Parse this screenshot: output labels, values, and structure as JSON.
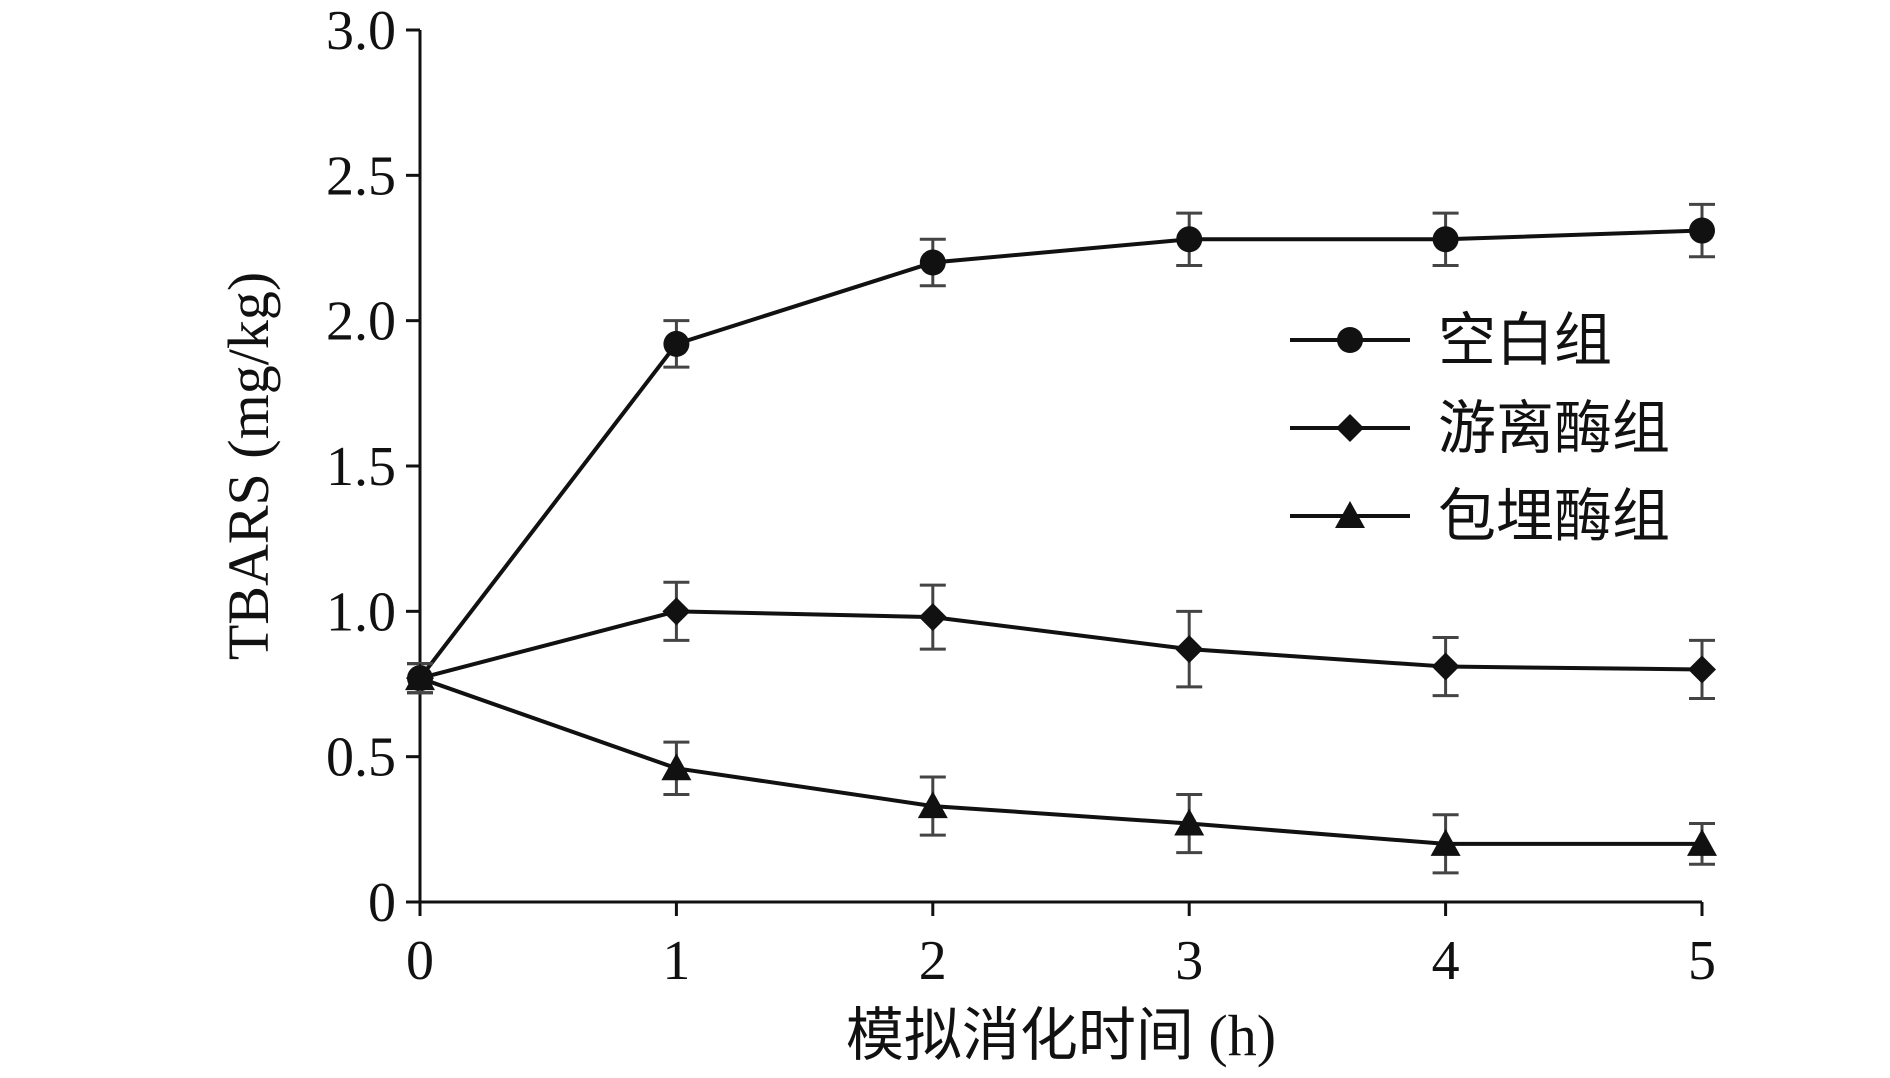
{
  "chart_data": {
    "type": "line",
    "title": "",
    "xlabel": "模拟消化时间 (h)",
    "ylabel": "TBARS (mg/kg)",
    "x": [
      0,
      1,
      2,
      3,
      4,
      5
    ],
    "xlim": [
      0,
      5
    ],
    "ylim": [
      0,
      3.0
    ],
    "xticks": [
      "0",
      "1",
      "2",
      "3",
      "4",
      "5"
    ],
    "yticks": [
      "0",
      "0.5",
      "1.0",
      "1.5",
      "2.0",
      "2.5",
      "3.0"
    ],
    "grid": false,
    "legend_position": "right",
    "series": [
      {
        "name": "空白组",
        "marker": "circle",
        "values": [
          0.77,
          1.92,
          2.2,
          2.28,
          2.28,
          2.31
        ],
        "errors": [
          0.05,
          0.08,
          0.08,
          0.09,
          0.09,
          0.09
        ]
      },
      {
        "name": "游离酶组",
        "marker": "diamond",
        "values": [
          0.77,
          1.0,
          0.98,
          0.87,
          0.81,
          0.8
        ],
        "errors": [
          0.05,
          0.1,
          0.11,
          0.13,
          0.1,
          0.1
        ]
      },
      {
        "name": "包埋酶组",
        "marker": "triangle",
        "values": [
          0.77,
          0.46,
          0.33,
          0.27,
          0.2,
          0.2
        ],
        "errors": [
          0.05,
          0.09,
          0.1,
          0.1,
          0.1,
          0.07
        ]
      }
    ]
  },
  "colors": {
    "line": "#111111",
    "errorbar": "#444444"
  }
}
